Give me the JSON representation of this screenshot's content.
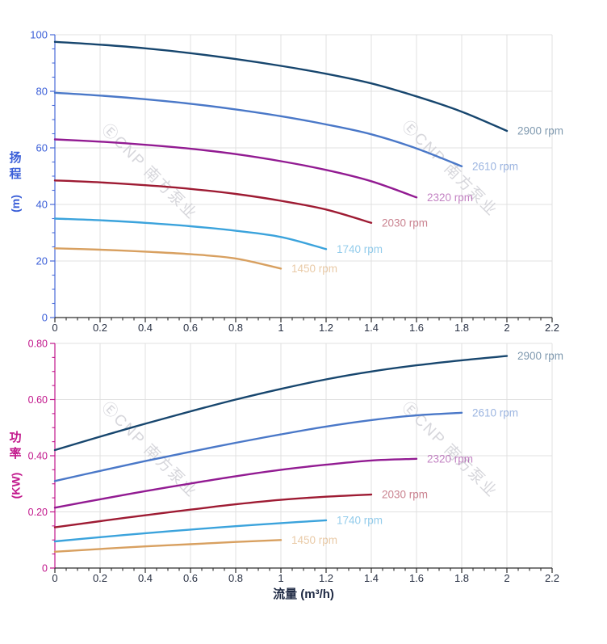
{
  "watermark": {
    "text": "ⒺCNP 南方泵业",
    "color": "#d2d2d8"
  },
  "head_axis_title": {
    "char1": "扬",
    "char2": "程",
    "unit": "(m)"
  },
  "power_axis_title": {
    "char1": "功",
    "char2": "率",
    "unit": "(KW)"
  },
  "flow_axis_title": "流量 (m³/h)",
  "chart_data": [
    {
      "type": "line",
      "title": "",
      "ylabel": "扬程 (m)",
      "xlabel": "",
      "xlim": [
        0,
        2.2
      ],
      "ylim": [
        0,
        100
      ],
      "grid": true,
      "legend_position": "line-end-labels",
      "xticks": {
        "major": [
          0,
          0.2,
          0.4,
          0.6,
          0.8,
          1,
          1.2,
          1.4,
          1.6,
          1.8,
          2,
          2.2
        ],
        "labels": [
          "0",
          "0.2",
          "0.4",
          "0.6",
          "0.8",
          "1",
          "1.2",
          "1.4",
          "1.6",
          "1.8",
          "2",
          "2.2"
        ],
        "minor_step": 0.05
      },
      "yticks": {
        "major": [
          0,
          20,
          40,
          60,
          80,
          100
        ],
        "labels": [
          "0",
          "20",
          "40",
          "60",
          "80",
          "100"
        ],
        "minor_step": 5
      },
      "colors": {
        "grid": "#e0e0e0",
        "y_axis": "#4a6bd8",
        "y_labels": "#3b5fd8",
        "x_axis": "#2f2f2f",
        "x_labels": "#2a3245"
      },
      "series": [
        {
          "name": "2900 rpm",
          "color": "#17466e",
          "points": [
            [
              0,
              97.5
            ],
            [
              0.2,
              96.5
            ],
            [
              0.4,
              95.2
            ],
            [
              0.6,
              93.5
            ],
            [
              0.8,
              91.4
            ],
            [
              1,
              89
            ],
            [
              1.2,
              86.2
            ],
            [
              1.4,
              82.8
            ],
            [
              1.6,
              78.2
            ],
            [
              1.8,
              72.8
            ],
            [
              2,
              66
            ]
          ]
        },
        {
          "name": "2610 rpm",
          "color": "#4a78c8",
          "points": [
            [
              0,
              79.5
            ],
            [
              0.2,
              78.5
            ],
            [
              0.4,
              77.2
            ],
            [
              0.6,
              75.6
            ],
            [
              0.8,
              73.6
            ],
            [
              1,
              71.2
            ],
            [
              1.2,
              68.3
            ],
            [
              1.4,
              64.8
            ],
            [
              1.6,
              59.8
            ],
            [
              1.8,
              53.5
            ]
          ]
        },
        {
          "name": "2320 rpm",
          "color": "#921b92",
          "points": [
            [
              0,
              63
            ],
            [
              0.2,
              62.2
            ],
            [
              0.4,
              61.1
            ],
            [
              0.6,
              59.7
            ],
            [
              0.8,
              57.8
            ],
            [
              1,
              55.3
            ],
            [
              1.2,
              52.2
            ],
            [
              1.4,
              48.2
            ],
            [
              1.6,
              42.5
            ]
          ]
        },
        {
          "name": "2030 rpm",
          "color": "#9e1b33",
          "points": [
            [
              0,
              48.5
            ],
            [
              0.2,
              47.8
            ],
            [
              0.4,
              46.8
            ],
            [
              0.6,
              45.5
            ],
            [
              0.8,
              43.7
            ],
            [
              1,
              41.3
            ],
            [
              1.2,
              38.2
            ],
            [
              1.4,
              33.5
            ]
          ]
        },
        {
          "name": "1740 rpm",
          "color": "#3ba3dc",
          "points": [
            [
              0,
              35
            ],
            [
              0.2,
              34.4
            ],
            [
              0.4,
              33.5
            ],
            [
              0.6,
              32.3
            ],
            [
              0.8,
              30.7
            ],
            [
              1,
              28.5
            ],
            [
              1.2,
              24.2
            ]
          ]
        },
        {
          "name": "1450 rpm",
          "color": "#d8a060",
          "points": [
            [
              0,
              24.5
            ],
            [
              0.2,
              24
            ],
            [
              0.4,
              23.3
            ],
            [
              0.6,
              22.4
            ],
            [
              0.8,
              20.9
            ],
            [
              1,
              17.3
            ]
          ]
        }
      ]
    },
    {
      "type": "line",
      "title": "",
      "ylabel": "功率 (KW)",
      "xlabel": "流量 (m³/h)",
      "xlim": [
        0,
        2.2
      ],
      "ylim": [
        0,
        0.8
      ],
      "grid": true,
      "legend_position": "line-end-labels",
      "xticks": {
        "major": [
          0,
          0.2,
          0.4,
          0.6,
          0.8,
          1,
          1.2,
          1.4,
          1.6,
          1.8,
          2,
          2.2
        ],
        "labels": [
          "0",
          "0.2",
          "0.4",
          "0.6",
          "0.8",
          "1",
          "1.2",
          "1.4",
          "1.6",
          "1.8",
          "2",
          "2.2"
        ],
        "minor_step": 0.05
      },
      "yticks": {
        "major": [
          0,
          0.2,
          0.4,
          0.6,
          0.8
        ],
        "labels": [
          "0",
          "0.20",
          "0.40",
          "0.60",
          "0.80"
        ],
        "minor_step": 0.05
      },
      "colors": {
        "grid": "#e0e0e0",
        "y_axis": "#c2188c",
        "y_labels": "#c2188c",
        "x_axis": "#2f2f2f",
        "x_labels": "#2a3245"
      },
      "series": [
        {
          "name": "2900 rpm",
          "color": "#17466e",
          "points": [
            [
              0,
              0.42
            ],
            [
              0.2,
              0.468
            ],
            [
              0.4,
              0.514
            ],
            [
              0.6,
              0.558
            ],
            [
              0.8,
              0.6
            ],
            [
              1,
              0.638
            ],
            [
              1.2,
              0.672
            ],
            [
              1.4,
              0.7
            ],
            [
              1.6,
              0.722
            ],
            [
              1.8,
              0.74
            ],
            [
              2,
              0.755
            ]
          ]
        },
        {
          "name": "2610 rpm",
          "color": "#4a78c8",
          "points": [
            [
              0,
              0.31
            ],
            [
              0.2,
              0.346
            ],
            [
              0.4,
              0.381
            ],
            [
              0.6,
              0.414
            ],
            [
              0.8,
              0.446
            ],
            [
              1,
              0.476
            ],
            [
              1.2,
              0.504
            ],
            [
              1.4,
              0.527
            ],
            [
              1.6,
              0.544
            ],
            [
              1.8,
              0.553
            ]
          ]
        },
        {
          "name": "2320 rpm",
          "color": "#921b92",
          "points": [
            [
              0,
              0.215
            ],
            [
              0.2,
              0.245
            ],
            [
              0.4,
              0.274
            ],
            [
              0.6,
              0.301
            ],
            [
              0.8,
              0.327
            ],
            [
              1,
              0.35
            ],
            [
              1.2,
              0.368
            ],
            [
              1.4,
              0.383
            ],
            [
              1.6,
              0.389
            ]
          ]
        },
        {
          "name": "2030 rpm",
          "color": "#9e1b33",
          "points": [
            [
              0,
              0.145
            ],
            [
              0.2,
              0.167
            ],
            [
              0.4,
              0.188
            ],
            [
              0.6,
              0.208
            ],
            [
              0.8,
              0.227
            ],
            [
              1,
              0.243
            ],
            [
              1.2,
              0.254
            ],
            [
              1.4,
              0.262
            ]
          ]
        },
        {
          "name": "1740 rpm",
          "color": "#3ba3dc",
          "points": [
            [
              0,
              0.095
            ],
            [
              0.2,
              0.11
            ],
            [
              0.4,
              0.124
            ],
            [
              0.6,
              0.137
            ],
            [
              0.8,
              0.149
            ],
            [
              1,
              0.16
            ],
            [
              1.2,
              0.17
            ]
          ]
        },
        {
          "name": "1450 rpm",
          "color": "#d8a060",
          "points": [
            [
              0,
              0.058
            ],
            [
              0.2,
              0.068
            ],
            [
              0.4,
              0.077
            ],
            [
              0.6,
              0.085
            ],
            [
              0.8,
              0.093
            ],
            [
              1,
              0.1
            ]
          ]
        }
      ]
    }
  ]
}
